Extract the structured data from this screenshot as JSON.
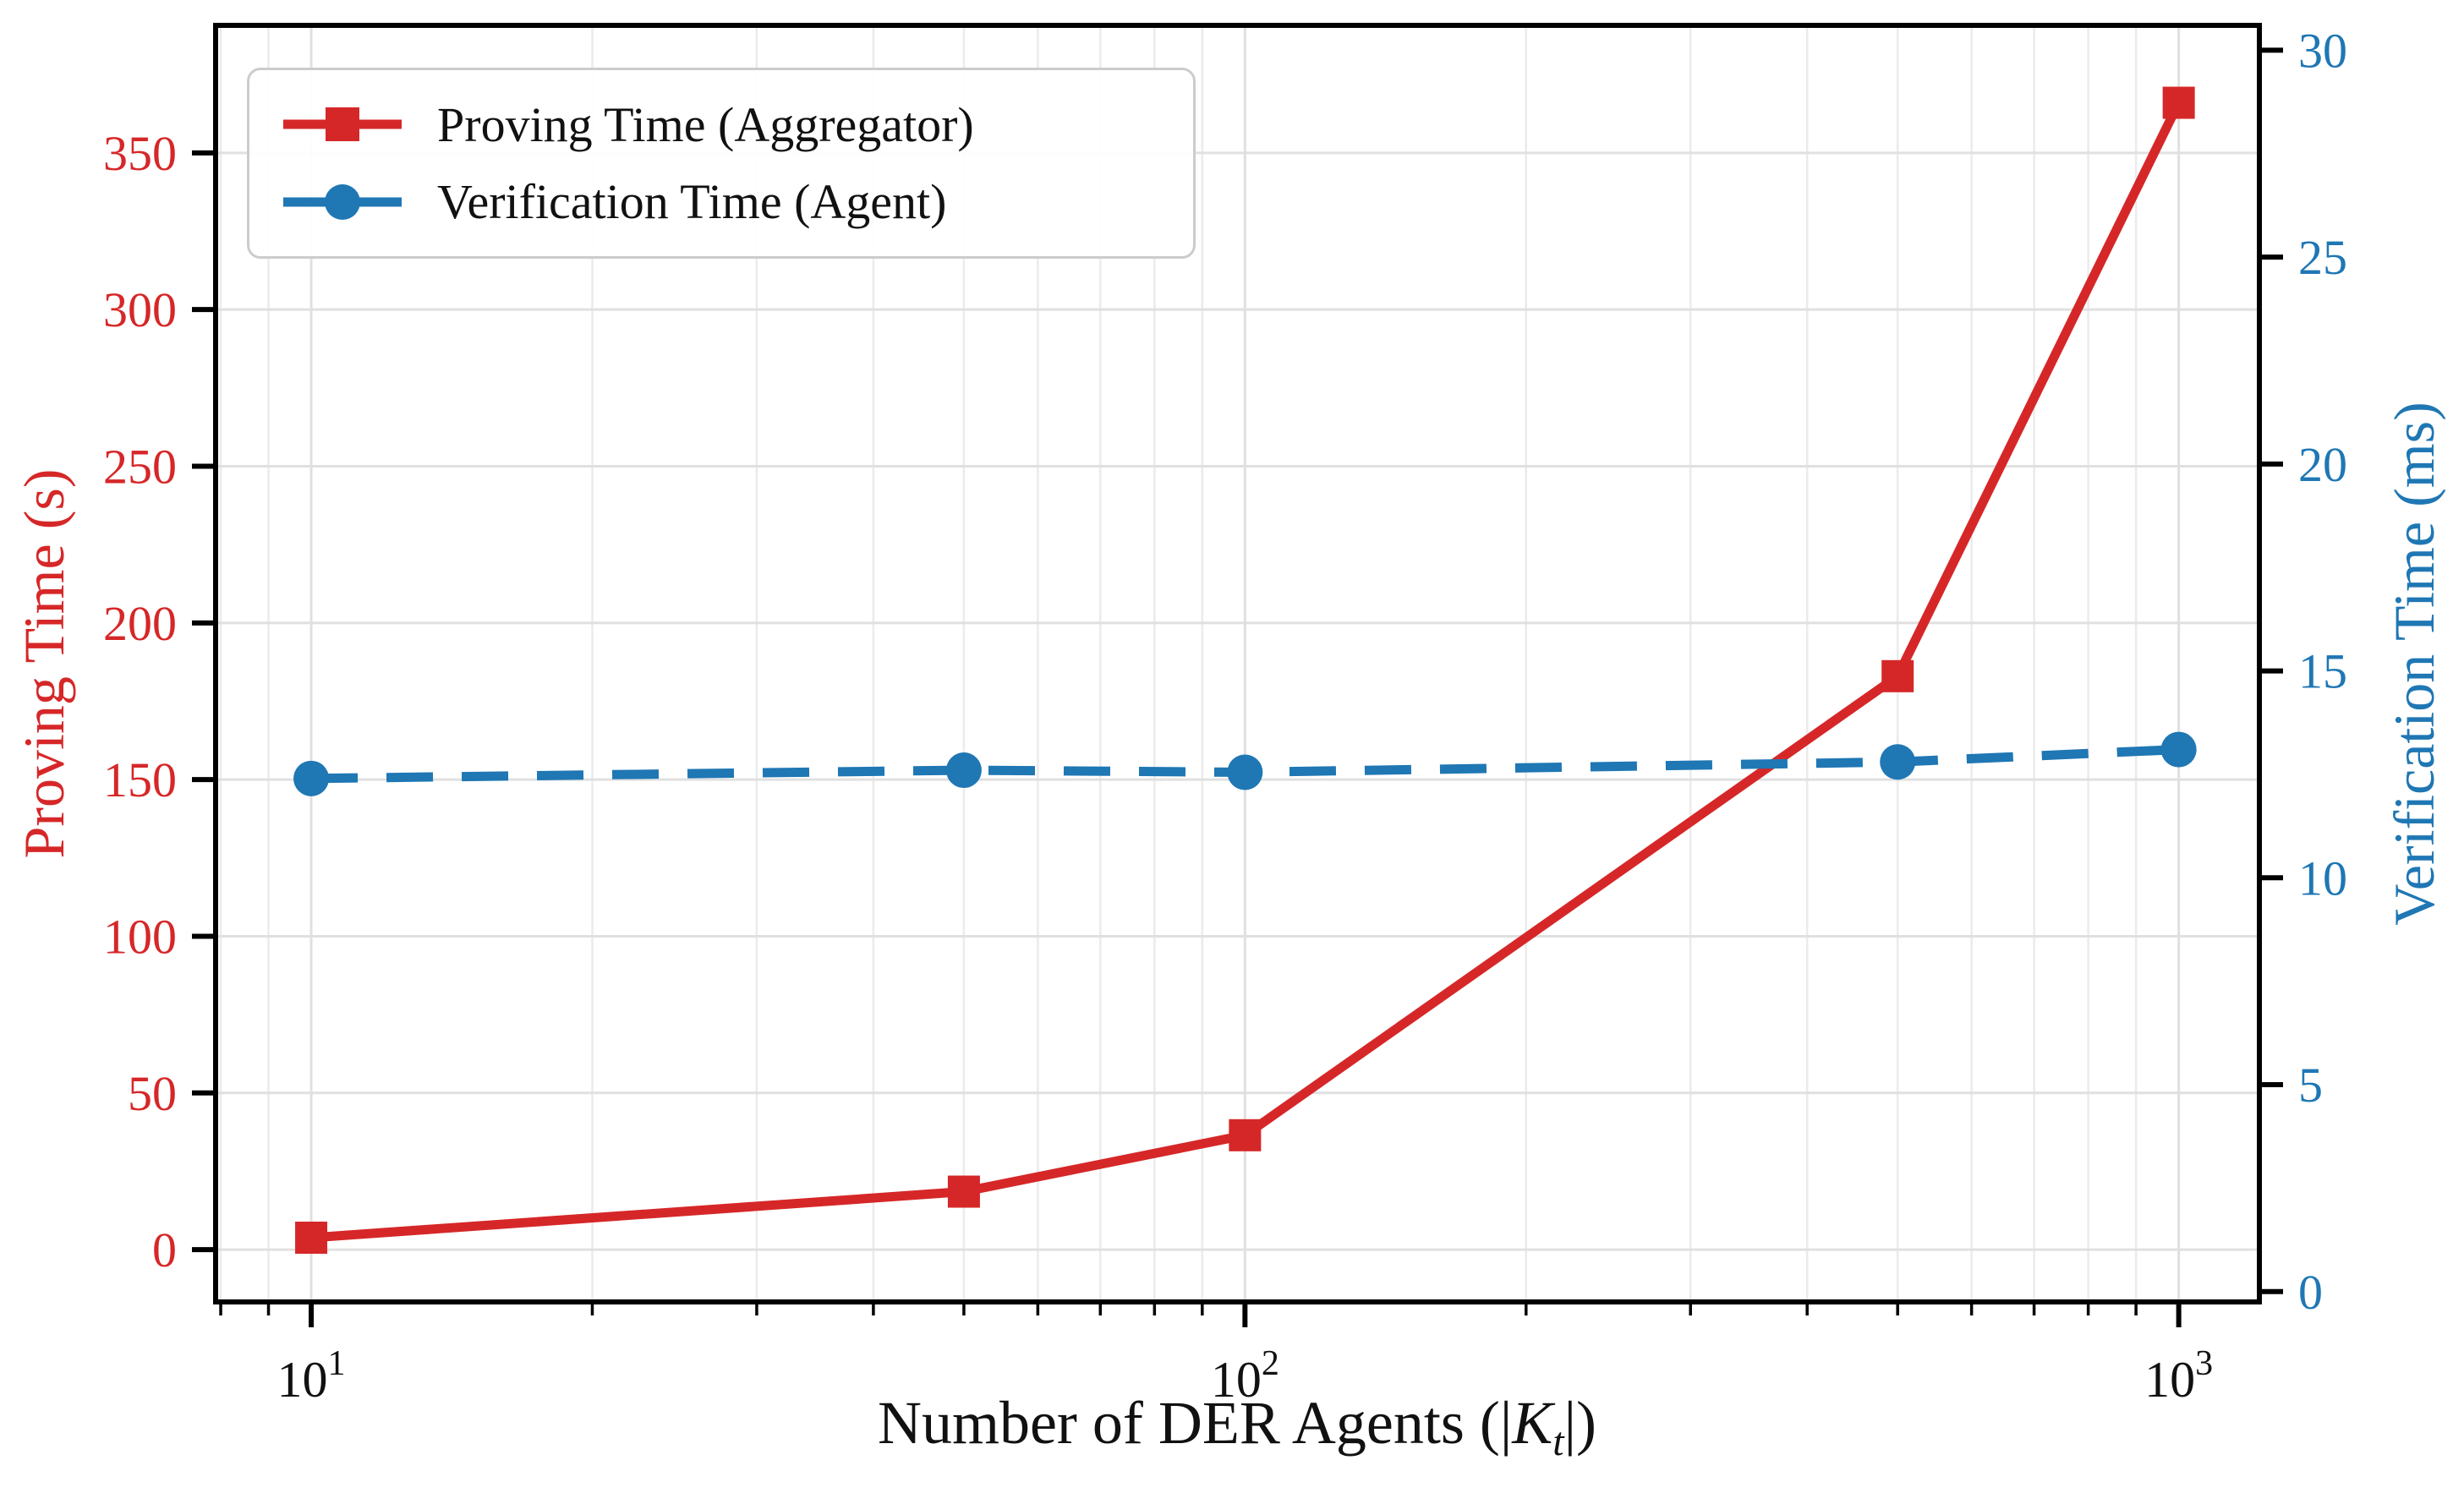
{
  "chart_data": {
    "type": "line",
    "title": "",
    "x_scale": "log",
    "x": [
      10,
      50,
      100,
      500,
      1000
    ],
    "series": [
      {
        "name": "Proving Time (Aggregator)",
        "axis": "left",
        "unit": "s",
        "color": "#d62728",
        "line_style": "solid",
        "marker": "square",
        "values": [
          3.8,
          18.5,
          36.5,
          183,
          366
        ]
      },
      {
        "name": "Verification Time (Agent)",
        "axis": "right",
        "unit": "ms",
        "color": "#1f77b4",
        "line_style": "dashed",
        "marker": "circle",
        "values": [
          12.4,
          12.6,
          12.55,
          12.8,
          13.1
        ]
      }
    ],
    "xlabel": "Number of DER Agents (|K_t|)",
    "xlabel_parts": {
      "prefix": "Number of DER Agents (|",
      "symbol": "K",
      "subscript": "t",
      "suffix": "|)"
    },
    "ylabel_left": "Proving Time (s)",
    "ylabel_right": "Verification Time (ms)",
    "x_axis": {
      "lim": [
        7.9,
        1220
      ],
      "ticks": [
        {
          "value": 10,
          "base": "10",
          "exp": "1"
        },
        {
          "value": 100,
          "base": "10",
          "exp": "2"
        },
        {
          "value": 1000,
          "base": "10",
          "exp": "3"
        }
      ],
      "minor_ticks": [
        8,
        9,
        20,
        30,
        40,
        50,
        60,
        70,
        80,
        90,
        200,
        300,
        400,
        500,
        600,
        700,
        800,
        900
      ]
    },
    "y_axis_left": {
      "lim": [
        -16.7,
        390.7
      ],
      "ticks": [
        0,
        50,
        100,
        150,
        200,
        250,
        300,
        350
      ],
      "color": "#d62728"
    },
    "y_axis_right": {
      "lim": [
        -0.25,
        30.6
      ],
      "ticks": [
        0,
        5,
        10,
        15,
        20,
        25,
        30
      ],
      "color": "#1f77b4"
    },
    "grid": {
      "show": true,
      "which": "both",
      "major_color": "#e0e0e0",
      "minor_color": "#ebebeb"
    },
    "legend": {
      "position": "upper left",
      "entries": [
        "Proving Time (Aggregator)",
        "Verification Time (Agent)"
      ]
    }
  },
  "style": {
    "spine_color": "#000000",
    "tick_color": "#000000",
    "background": "#ffffff",
    "legend_border": "#cccccc"
  }
}
